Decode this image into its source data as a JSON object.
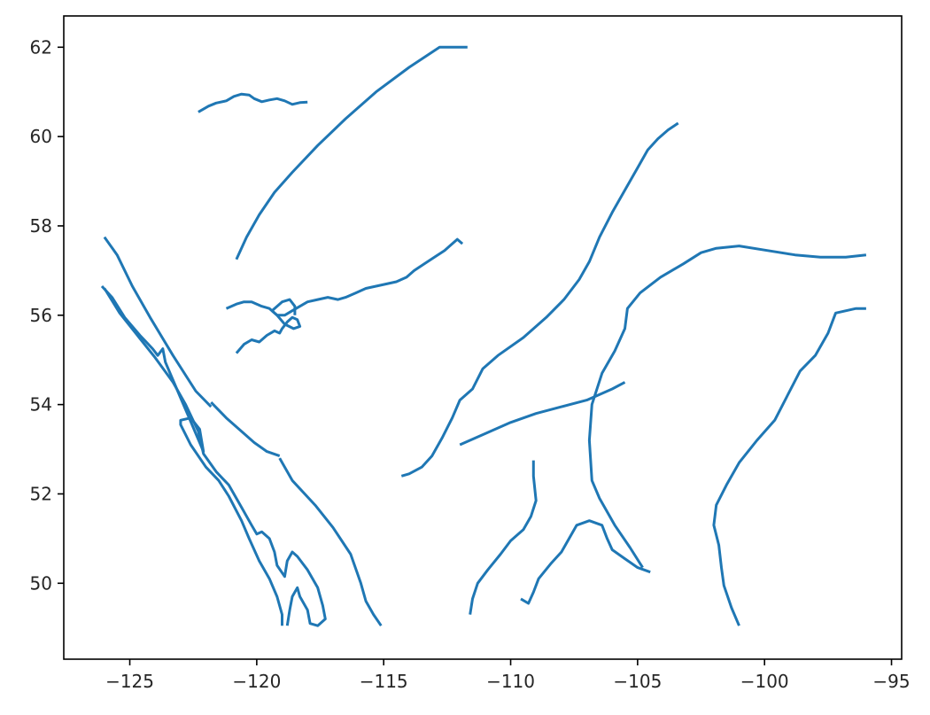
{
  "chart_data": {
    "type": "line",
    "title": "",
    "xlabel": "",
    "ylabel": "",
    "xlim": [
      -127.6,
      -94.6
    ],
    "ylim": [
      48.3,
      62.7
    ],
    "xticks": [
      -125,
      -120,
      -115,
      -110,
      -105,
      -100,
      -95
    ],
    "yticks": [
      50,
      52,
      54,
      56,
      58,
      60,
      62
    ],
    "xtick_labels": [
      "−125",
      "−120",
      "−115",
      "−110",
      "−105",
      "−100",
      "−95"
    ],
    "ytick_labels": [
      "50",
      "52",
      "54",
      "56",
      "58",
      "60",
      "62"
    ],
    "grid": false,
    "legend": "none",
    "line_color": "#1f77b4",
    "series": [
      {
        "values": [
          [
            -122.3,
            60.55
          ],
          [
            -121.9,
            60.68
          ],
          [
            -121.6,
            60.75
          ],
          [
            -121.2,
            60.8
          ],
          [
            -120.9,
            60.9
          ],
          [
            -120.6,
            60.95
          ],
          [
            -120.3,
            60.93
          ],
          [
            -120.1,
            60.85
          ],
          [
            -119.8,
            60.78
          ],
          [
            -119.5,
            60.82
          ],
          [
            -119.2,
            60.85
          ],
          [
            -118.9,
            60.8
          ],
          [
            -118.6,
            60.72
          ],
          [
            -118.3,
            60.76
          ],
          [
            -118.0,
            60.77
          ]
        ]
      },
      {
        "values": [
          [
            -120.8,
            57.25
          ],
          [
            -120.4,
            57.75
          ],
          [
            -119.9,
            58.25
          ],
          [
            -119.3,
            58.75
          ],
          [
            -118.6,
            59.2
          ],
          [
            -117.6,
            59.8
          ],
          [
            -116.5,
            60.4
          ],
          [
            -115.3,
            61.0
          ],
          [
            -114.0,
            61.55
          ],
          [
            -112.8,
            62.0
          ],
          [
            -111.7,
            62.0
          ]
        ]
      },
      {
        "values": [
          [
            -103.4,
            60.3
          ],
          [
            -103.8,
            60.15
          ],
          [
            -104.2,
            59.95
          ],
          [
            -104.6,
            59.7
          ],
          [
            -105.0,
            59.3
          ],
          [
            -105.5,
            58.8
          ],
          [
            -106.0,
            58.3
          ],
          [
            -106.5,
            57.75
          ],
          [
            -106.9,
            57.2
          ],
          [
            -107.3,
            56.8
          ],
          [
            -107.9,
            56.35
          ],
          [
            -108.6,
            55.95
          ],
          [
            -109.5,
            55.5
          ],
          [
            -110.5,
            55.1
          ],
          [
            -111.1,
            54.8
          ],
          [
            -111.5,
            54.35
          ],
          [
            -112.0,
            54.1
          ],
          [
            -112.3,
            53.7
          ],
          [
            -112.7,
            53.25
          ],
          [
            -113.1,
            52.85
          ],
          [
            -113.5,
            52.6
          ],
          [
            -114.0,
            52.45
          ],
          [
            -114.3,
            52.4
          ]
        ]
      },
      {
        "values": [
          [
            -126.0,
            57.75
          ],
          [
            -125.5,
            57.35
          ],
          [
            -124.9,
            56.65
          ],
          [
            -124.2,
            55.95
          ],
          [
            -123.3,
            55.1
          ],
          [
            -122.4,
            54.3
          ],
          [
            -121.8,
            53.95
          ]
        ]
      },
      {
        "values": [
          [
            -121.2,
            56.15
          ],
          [
            -120.8,
            56.25
          ],
          [
            -120.5,
            56.3
          ],
          [
            -120.2,
            56.3
          ],
          [
            -119.8,
            56.2
          ],
          [
            -119.5,
            56.15
          ],
          [
            -119.2,
            56.0
          ],
          [
            -118.9,
            56.0
          ],
          [
            -118.6,
            56.1
          ],
          [
            -118.3,
            56.2
          ],
          [
            -118.0,
            56.3
          ],
          [
            -117.6,
            56.35
          ],
          [
            -117.2,
            56.4
          ],
          [
            -116.8,
            56.35
          ],
          [
            -116.5,
            56.4
          ],
          [
            -116.1,
            56.5
          ],
          [
            -115.7,
            56.6
          ],
          [
            -115.3,
            56.65
          ],
          [
            -114.9,
            56.7
          ],
          [
            -114.5,
            56.75
          ],
          [
            -114.1,
            56.85
          ],
          [
            -113.8,
            57.0
          ],
          [
            -113.4,
            57.15
          ],
          [
            -113.0,
            57.3
          ],
          [
            -112.6,
            57.45
          ],
          [
            -112.3,
            57.6
          ],
          [
            -112.1,
            57.7
          ],
          [
            -111.9,
            57.6
          ]
        ]
      },
      {
        "values": [
          [
            -120.8,
            55.15
          ],
          [
            -120.5,
            55.35
          ],
          [
            -120.2,
            55.45
          ],
          [
            -119.9,
            55.4
          ],
          [
            -119.6,
            55.55
          ],
          [
            -119.3,
            55.65
          ],
          [
            -119.1,
            55.6
          ],
          [
            -119.0,
            55.7
          ],
          [
            -118.8,
            55.85
          ],
          [
            -118.6,
            55.95
          ],
          [
            -118.4,
            55.9
          ],
          [
            -118.3,
            55.75
          ],
          [
            -118.55,
            55.7
          ],
          [
            -118.9,
            55.8
          ],
          [
            -119.2,
            56.0
          ],
          [
            -119.4,
            56.1
          ],
          [
            -119.0,
            56.3
          ],
          [
            -118.7,
            56.35
          ],
          [
            -118.5,
            56.2
          ],
          [
            -118.5,
            56.0
          ]
        ]
      },
      {
        "values": [
          [
            -126.1,
            56.65
          ],
          [
            -125.7,
            56.4
          ],
          [
            -125.2,
            55.95
          ],
          [
            -124.6,
            55.55
          ],
          [
            -124.1,
            55.25
          ],
          [
            -123.9,
            55.1
          ],
          [
            -123.7,
            55.25
          ],
          [
            -123.6,
            54.95
          ],
          [
            -123.3,
            54.55
          ],
          [
            -123.0,
            54.15
          ],
          [
            -122.7,
            53.75
          ],
          [
            -122.4,
            53.35
          ],
          [
            -122.1,
            52.95
          ],
          [
            -122.25,
            53.45
          ],
          [
            -122.6,
            53.7
          ],
          [
            -123.0,
            53.65
          ],
          [
            -123.0,
            53.55
          ],
          [
            -122.6,
            53.1
          ],
          [
            -122.0,
            52.6
          ],
          [
            -121.5,
            52.3
          ],
          [
            -121.1,
            51.95
          ],
          [
            -120.6,
            51.4
          ],
          [
            -120.3,
            51.0
          ],
          [
            -119.9,
            50.5
          ],
          [
            -119.5,
            50.1
          ],
          [
            -119.2,
            49.7
          ],
          [
            -119.0,
            49.3
          ],
          [
            -119.0,
            49.05
          ]
        ]
      },
      {
        "values": [
          [
            -126.0,
            56.6
          ],
          [
            -125.4,
            56.05
          ],
          [
            -124.7,
            55.55
          ],
          [
            -124.0,
            55.05
          ],
          [
            -123.3,
            54.5
          ],
          [
            -122.8,
            54.0
          ],
          [
            -122.3,
            53.4
          ],
          [
            -122.1,
            52.9
          ],
          [
            -121.6,
            52.5
          ],
          [
            -121.1,
            52.2
          ],
          [
            -120.6,
            51.7
          ],
          [
            -120.2,
            51.3
          ],
          [
            -120.0,
            51.1
          ],
          [
            -119.8,
            51.15
          ],
          [
            -119.5,
            51.0
          ],
          [
            -119.3,
            50.7
          ],
          [
            -119.2,
            50.4
          ],
          [
            -118.9,
            50.15
          ],
          [
            -118.8,
            50.5
          ],
          [
            -118.6,
            50.7
          ],
          [
            -118.4,
            50.6
          ],
          [
            -118.0,
            50.3
          ],
          [
            -117.6,
            49.9
          ],
          [
            -117.4,
            49.5
          ],
          [
            -117.3,
            49.2
          ],
          [
            -117.6,
            49.05
          ],
          [
            -117.9,
            49.1
          ],
          [
            -118.0,
            49.4
          ],
          [
            -118.3,
            49.7
          ],
          [
            -118.4,
            49.9
          ],
          [
            -118.6,
            49.7
          ],
          [
            -118.7,
            49.4
          ],
          [
            -118.8,
            49.05
          ]
        ]
      },
      {
        "values": [
          [
            -121.8,
            54.05
          ],
          [
            -121.2,
            53.7
          ],
          [
            -120.6,
            53.4
          ],
          [
            -120.1,
            53.15
          ],
          [
            -119.6,
            52.95
          ],
          [
            -119.1,
            52.85
          ]
        ]
      },
      {
        "values": [
          [
            -119.1,
            52.8
          ],
          [
            -118.6,
            52.3
          ],
          [
            -117.7,
            51.75
          ],
          [
            -117.0,
            51.25
          ],
          [
            -116.3,
            50.65
          ],
          [
            -115.9,
            50.0
          ],
          [
            -115.7,
            49.6
          ],
          [
            -115.4,
            49.3
          ],
          [
            -115.1,
            49.05
          ]
        ]
      },
      {
        "values": [
          [
            -112.0,
            53.1
          ],
          [
            -111.0,
            53.35
          ],
          [
            -110.0,
            53.6
          ],
          [
            -109.0,
            53.8
          ],
          [
            -108.0,
            53.95
          ],
          [
            -107.0,
            54.1
          ],
          [
            -106.0,
            54.35
          ],
          [
            -105.5,
            54.5
          ]
        ]
      },
      {
        "values": [
          [
            -109.1,
            52.75
          ],
          [
            -109.1,
            52.4
          ],
          [
            -109.0,
            51.85
          ],
          [
            -109.2,
            51.5
          ],
          [
            -109.5,
            51.2
          ],
          [
            -110.0,
            50.95
          ],
          [
            -110.4,
            50.65
          ],
          [
            -110.9,
            50.3
          ],
          [
            -111.3,
            50.0
          ],
          [
            -111.5,
            49.65
          ],
          [
            -111.6,
            49.3
          ]
        ]
      },
      {
        "values": [
          [
            -109.6,
            49.65
          ],
          [
            -109.3,
            49.55
          ],
          [
            -109.1,
            49.8
          ],
          [
            -108.9,
            50.1
          ],
          [
            -108.4,
            50.45
          ],
          [
            -108.0,
            50.7
          ],
          [
            -107.7,
            51.0
          ],
          [
            -107.4,
            51.3
          ],
          [
            -106.9,
            51.4
          ],
          [
            -106.4,
            51.3
          ],
          [
            -106.2,
            51.0
          ],
          [
            -106.0,
            50.75
          ],
          [
            -105.5,
            50.55
          ],
          [
            -105.0,
            50.35
          ],
          [
            -104.5,
            50.25
          ]
        ]
      },
      {
        "values": [
          [
            -101.0,
            49.05
          ],
          [
            -101.3,
            49.45
          ],
          [
            -101.6,
            49.95
          ],
          [
            -101.7,
            50.35
          ],
          [
            -101.8,
            50.85
          ],
          [
            -102.0,
            51.3
          ],
          [
            -101.9,
            51.75
          ],
          [
            -101.5,
            52.2
          ],
          [
            -101.0,
            52.7
          ],
          [
            -100.3,
            53.2
          ],
          [
            -99.6,
            53.65
          ],
          [
            -99.1,
            54.2
          ],
          [
            -98.6,
            54.75
          ],
          [
            -98.0,
            55.1
          ],
          [
            -97.5,
            55.6
          ],
          [
            -97.2,
            56.05
          ],
          [
            -96.4,
            56.15
          ],
          [
            -96.0,
            56.15
          ]
        ]
      },
      {
        "values": [
          [
            -104.8,
            50.35
          ],
          [
            -105.3,
            50.8
          ],
          [
            -105.9,
            51.3
          ],
          [
            -106.5,
            51.9
          ],
          [
            -106.8,
            52.3
          ],
          [
            -106.9,
            53.2
          ],
          [
            -106.8,
            54.0
          ],
          [
            -106.4,
            54.7
          ],
          [
            -105.9,
            55.2
          ],
          [
            -105.5,
            55.7
          ],
          [
            -105.4,
            56.15
          ],
          [
            -104.9,
            56.5
          ],
          [
            -104.1,
            56.85
          ],
          [
            -103.2,
            57.15
          ],
          [
            -102.5,
            57.4
          ],
          [
            -101.9,
            57.5
          ],
          [
            -101.0,
            57.55
          ],
          [
            -99.9,
            57.45
          ],
          [
            -98.8,
            57.35
          ],
          [
            -97.8,
            57.3
          ],
          [
            -96.8,
            57.3
          ],
          [
            -96.0,
            57.35
          ]
        ]
      }
    ]
  }
}
